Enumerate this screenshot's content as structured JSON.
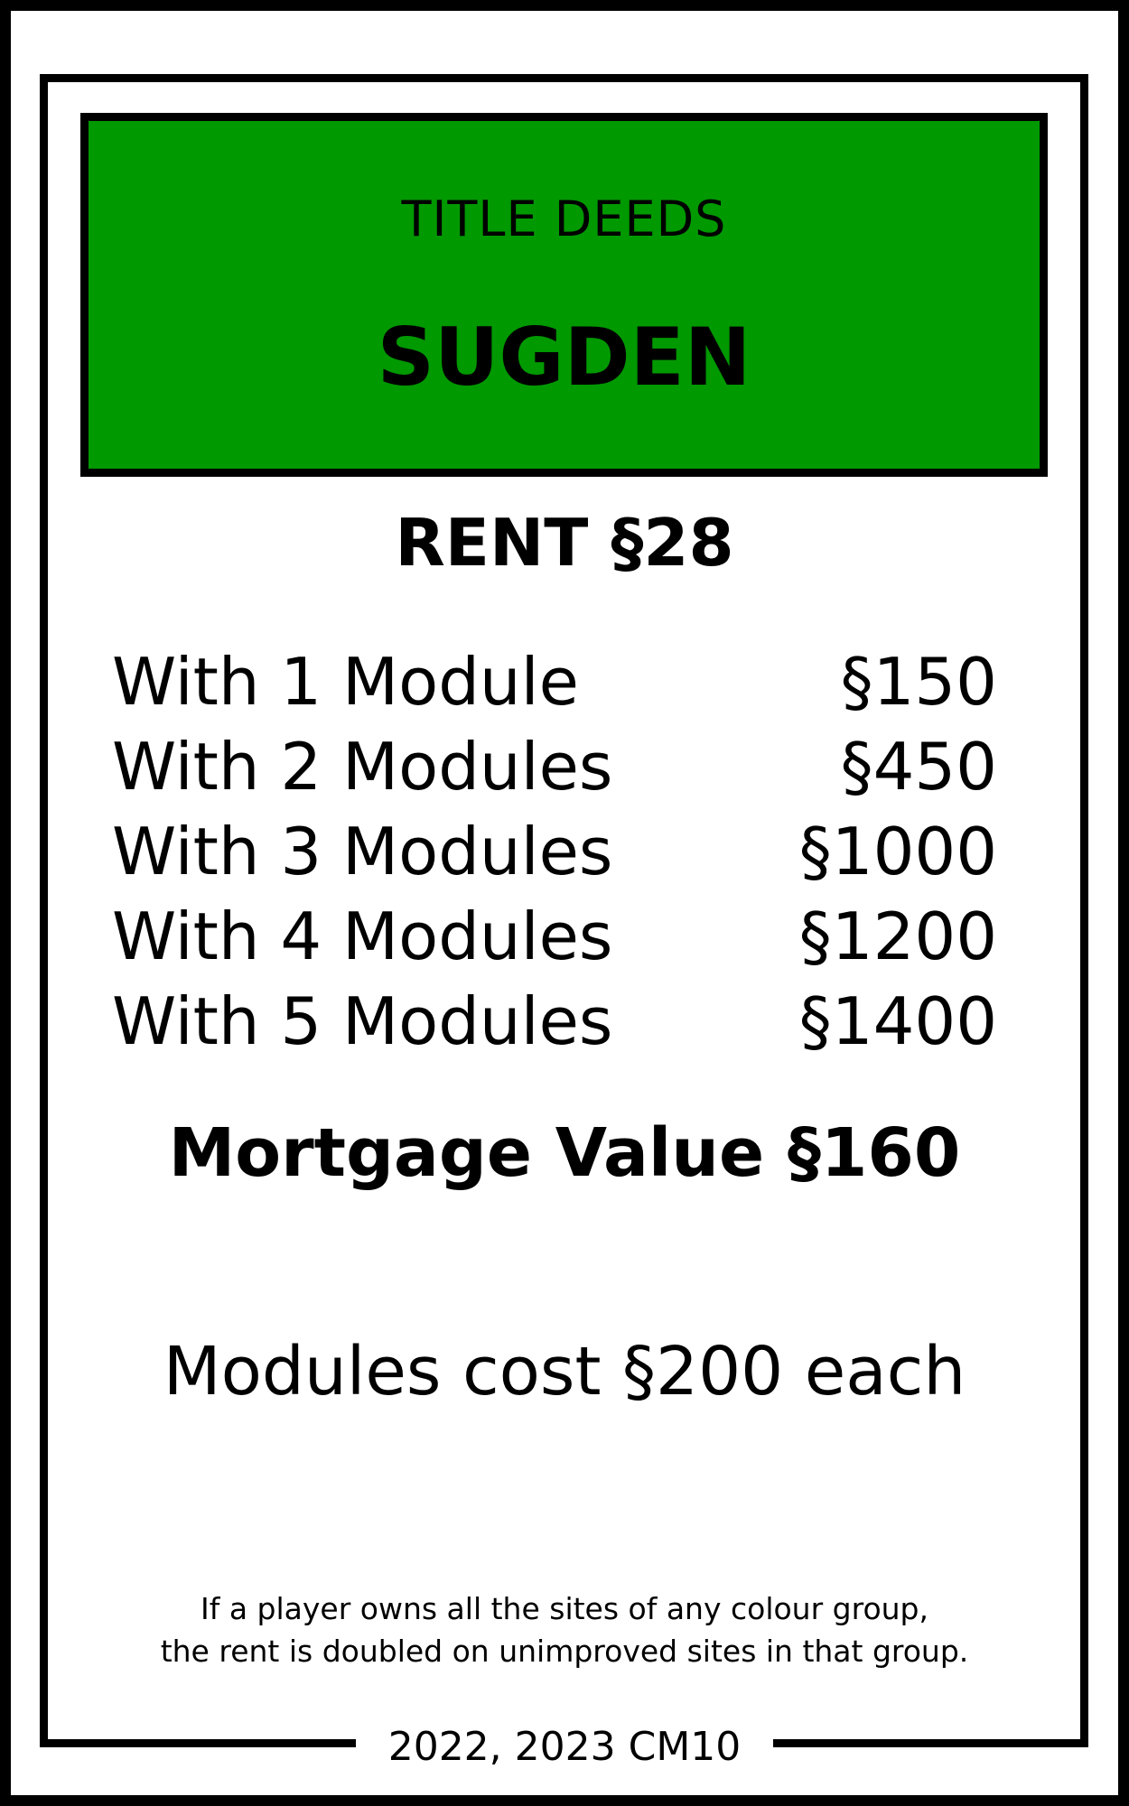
{
  "card": {
    "header_label": "TITLE DEEDS",
    "property_name": "SUGDEN",
    "header_color": "#009900",
    "rent": "RENT §28",
    "rent_table": [
      {
        "label": "With 1 Module",
        "amount": "§150"
      },
      {
        "label": "With 2 Modules",
        "amount": "§450"
      },
      {
        "label": "With 3 Modules",
        "amount": "§1000"
      },
      {
        "label": "With 4 Modules",
        "amount": "§1200"
      },
      {
        "label": "With 5 Modules",
        "amount": "§1400"
      }
    ],
    "mortgage": "Mortgage Value §160",
    "modules_cost": "Modules cost §200 each",
    "note_line1": "If a player owns all the sites of any colour group,",
    "note_line2": "the rent is doubled on unimproved sites in that group.",
    "footer": "2022, 2023 CM10"
  }
}
